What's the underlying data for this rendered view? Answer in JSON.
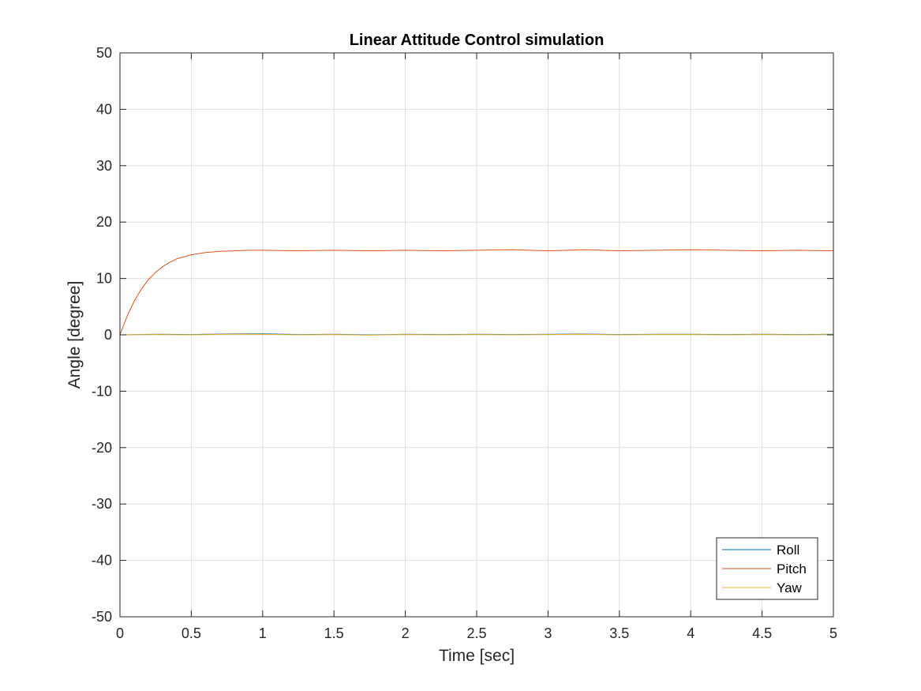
{
  "chart_data": {
    "type": "line",
    "title": "Linear Attitude Control simulation",
    "xlabel": "Time [sec]",
    "ylabel": "Angle [degree]",
    "xlim": [
      0,
      5
    ],
    "ylim": [
      -50,
      50
    ],
    "xticks": [
      0,
      0.5,
      1,
      1.5,
      2,
      2.5,
      3,
      3.5,
      4,
      4.5,
      5
    ],
    "xtick_labels": [
      "0",
      "0.5",
      "1",
      "1.5",
      "2",
      "2.5",
      "3",
      "3.5",
      "4",
      "4.5",
      "5"
    ],
    "yticks": [
      -50,
      -40,
      -30,
      -20,
      -10,
      0,
      10,
      20,
      30,
      40,
      50
    ],
    "ytick_labels": [
      "-50",
      "-40",
      "-30",
      "-20",
      "-10",
      "0",
      "10",
      "20",
      "30",
      "40",
      "50"
    ],
    "grid": true,
    "legend_position": "bottom-right",
    "series": [
      {
        "name": "Roll",
        "color": "#0072BD",
        "x": [
          0,
          0.25,
          0.5,
          0.75,
          1,
          1.25,
          1.5,
          1.75,
          2,
          2.25,
          2.5,
          2.75,
          3,
          3.25,
          3.5,
          3.75,
          4,
          4.25,
          4.5,
          4.75,
          5
        ],
        "y": [
          0,
          0.1,
          0.05,
          0.15,
          0.2,
          0.05,
          0.1,
          0.0,
          0.1,
          0.05,
          0.1,
          0.05,
          0.1,
          0.15,
          0.05,
          0.1,
          0.1,
          0.05,
          0.1,
          0.05,
          0.1
        ]
      },
      {
        "name": "Pitch",
        "color": "#D95319",
        "x": [
          0,
          0.05,
          0.1,
          0.15,
          0.2,
          0.25,
          0.3,
          0.35,
          0.4,
          0.5,
          0.6,
          0.7,
          0.8,
          0.9,
          1,
          1.25,
          1.5,
          1.75,
          2,
          2.25,
          2.5,
          2.75,
          3,
          3.25,
          3.5,
          3.75,
          4,
          4.25,
          4.5,
          4.75,
          5
        ],
        "y": [
          0,
          3.3,
          6.0,
          8.1,
          9.8,
          11.1,
          12.1,
          12.9,
          13.5,
          14.2,
          14.6,
          14.8,
          14.9,
          15.0,
          15.0,
          14.9,
          15.0,
          14.9,
          15.0,
          14.9,
          15.0,
          15.1,
          14.9,
          15.1,
          14.9,
          15.0,
          15.1,
          15.0,
          14.9,
          15.0,
          14.9
        ]
      },
      {
        "name": "Yaw",
        "color": "#EDB120",
        "x": [
          0,
          0.25,
          0.5,
          0.75,
          1,
          1.25,
          1.5,
          1.75,
          2,
          2.25,
          2.5,
          2.75,
          3,
          3.25,
          3.5,
          3.75,
          4,
          4.25,
          4.5,
          4.75,
          5
        ],
        "y": [
          0,
          0.05,
          0.0,
          0.1,
          0.1,
          0.0,
          0.05,
          -0.05,
          0.05,
          0.0,
          0.05,
          0.0,
          0.05,
          0.1,
          0.0,
          0.05,
          0.05,
          0.0,
          0.05,
          0.0,
          0.05
        ]
      }
    ]
  }
}
